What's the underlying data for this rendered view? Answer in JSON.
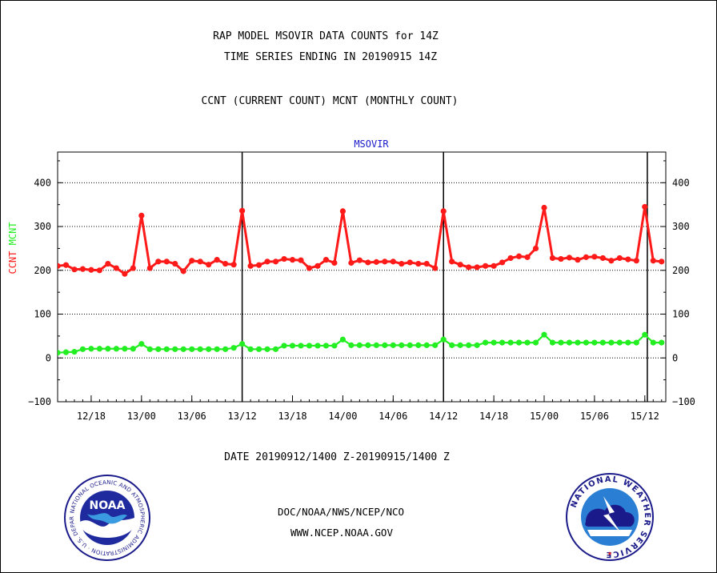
{
  "header": {
    "title_line1": "RAP MODEL MSOVIR DATA COUNTS for 14Z",
    "title_line2": "TIME SERIES ENDING IN 20190915 14Z",
    "subtitle": "CCNT (CURRENT COUNT) MCNT (MONTHLY COUNT)"
  },
  "footer": {
    "date_range": "DATE 20190912/1400 Z-20190915/1400 Z",
    "org_line": "DOC/NOAA/NWS/NCEP/NCO",
    "url": "WWW.NCEP.NOAA.GOV",
    "noaa_logo_text": "NOAA",
    "noaa_ring_text": "NATIONAL OCEANIC AND ATMOSPHERIC ADMINISTRATION · U.S. DEPARTMENT OF COMMERCE",
    "nws_ring_text": "NATIONAL WEATHER SERVICE"
  },
  "colors": {
    "ccnt": "#ff1a1a",
    "mcnt": "#22ee22",
    "label_blue": "#1a1acc",
    "date_red": "#ff1a1a"
  },
  "chart_data": {
    "type": "line",
    "title": "MSOVIR",
    "ylabel_parts": [
      {
        "text": "CCNT",
        "color": "#ff1a1a"
      },
      {
        "text": "MCNT",
        "color": "#22ee22"
      }
    ],
    "ylim": [
      -100,
      470
    ],
    "yticks": [
      -100,
      0,
      100,
      200,
      300,
      400
    ],
    "xlim": [
      0,
      72.5
    ],
    "x_note": "hours after 20190912 14Z",
    "xtick_labels": [
      {
        "x": 4,
        "label": "12/18"
      },
      {
        "x": 10,
        "label": "13/00"
      },
      {
        "x": 16,
        "label": "13/06"
      },
      {
        "x": 22,
        "label": "13/12"
      },
      {
        "x": 28,
        "label": "13/18"
      },
      {
        "x": 34,
        "label": "14/00"
      },
      {
        "x": 40,
        "label": "14/06"
      },
      {
        "x": 46,
        "label": "14/12"
      },
      {
        "x": 52,
        "label": "14/18"
      },
      {
        "x": 58,
        "label": "15/00"
      },
      {
        "x": 64,
        "label": "15/06"
      },
      {
        "x": 70,
        "label": "15/12"
      }
    ],
    "day_lines": [
      22,
      46,
      70.3
    ],
    "grid": "horizontal dotted",
    "series": [
      {
        "name": "CCNT",
        "color": "#ff1a1a",
        "values": [
          210,
          212,
          202,
          203,
          201,
          200,
          215,
          205,
          192,
          205,
          325,
          205,
          220,
          220,
          215,
          198,
          222,
          220,
          213,
          224,
          215,
          213,
          336,
          210,
          212,
          220,
          220,
          226,
          224,
          223,
          205,
          210,
          224,
          217,
          335,
          217,
          223,
          218,
          219,
          220,
          220,
          215,
          218,
          215,
          215,
          205,
          335,
          220,
          213,
          207,
          207,
          210,
          210,
          218,
          228,
          232,
          230,
          250,
          343,
          228,
          226,
          229,
          224,
          230,
          231,
          228,
          222,
          228,
          225,
          222,
          345,
          222,
          220
        ]
      },
      {
        "name": "MCNT",
        "color": "#22ee22",
        "values": [
          12,
          13,
          14,
          20,
          21,
          21,
          21,
          21,
          21,
          21,
          32,
          20,
          20,
          20,
          20,
          20,
          20,
          20,
          20,
          20,
          20,
          23,
          32,
          20,
          20,
          20,
          20,
          28,
          28,
          28,
          28,
          28,
          28,
          28,
          42,
          29,
          29,
          29,
          29,
          29,
          29,
          29,
          29,
          29,
          29,
          29,
          42,
          29,
          29,
          29,
          29,
          35,
          35,
          35,
          35,
          35,
          35,
          35,
          53,
          35,
          35,
          35,
          35,
          35,
          35,
          35,
          35,
          35,
          35,
          35,
          53,
          35,
          35
        ]
      }
    ]
  }
}
